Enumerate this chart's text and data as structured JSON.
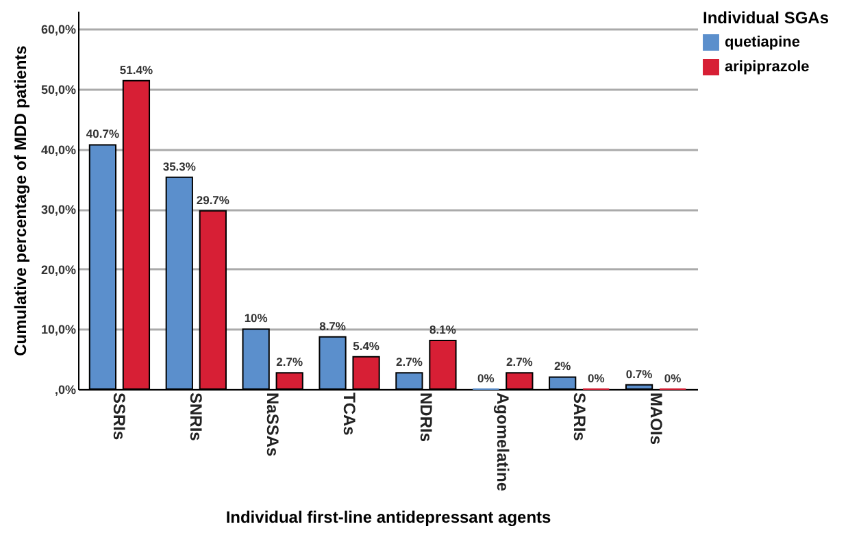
{
  "chart_data": {
    "type": "bar",
    "xlabel": "Individual first-line antidepressant agents",
    "ylabel": "Cumulative percentage of MDD patients",
    "legend_title": "Individual SGAs",
    "categories": [
      "SSRIs",
      "SNRIs",
      "NaSSAs",
      "TCAs",
      "NDRIs",
      "Agomelatine",
      "SARIs",
      "MAOIs"
    ],
    "series": [
      {
        "name": "quetiapine",
        "color": "#5b8fcc",
        "values": [
          40.7,
          35.3,
          10,
          8.7,
          2.7,
          0,
          2,
          0.7
        ],
        "value_labels": [
          "40.7%",
          "35.3%",
          "10%",
          "8.7%",
          "2.7%",
          "0%",
          "2%",
          "0.7%"
        ]
      },
      {
        "name": "aripiprazole",
        "color": "#d71f35",
        "values": [
          51.4,
          29.7,
          2.7,
          5.4,
          8.1,
          2.7,
          0,
          0
        ],
        "value_labels": [
          "51.4%",
          "29.7%",
          "2.7%",
          "5.4%",
          "8.1%",
          "2.7%",
          "0%",
          "0%"
        ]
      }
    ],
    "ylim": [
      0,
      63
    ],
    "yticks": [
      {
        "value": 0,
        "label": ",0%"
      },
      {
        "value": 10,
        "label": "10,0%"
      },
      {
        "value": 20,
        "label": "20,0%"
      },
      {
        "value": 30,
        "label": "30,0%"
      },
      {
        "value": 40,
        "label": "40,0%"
      },
      {
        "value": 50,
        "label": "50,0%"
      },
      {
        "value": 60,
        "label": "60,0%"
      }
    ],
    "grid": "y",
    "legend": "top right"
  }
}
